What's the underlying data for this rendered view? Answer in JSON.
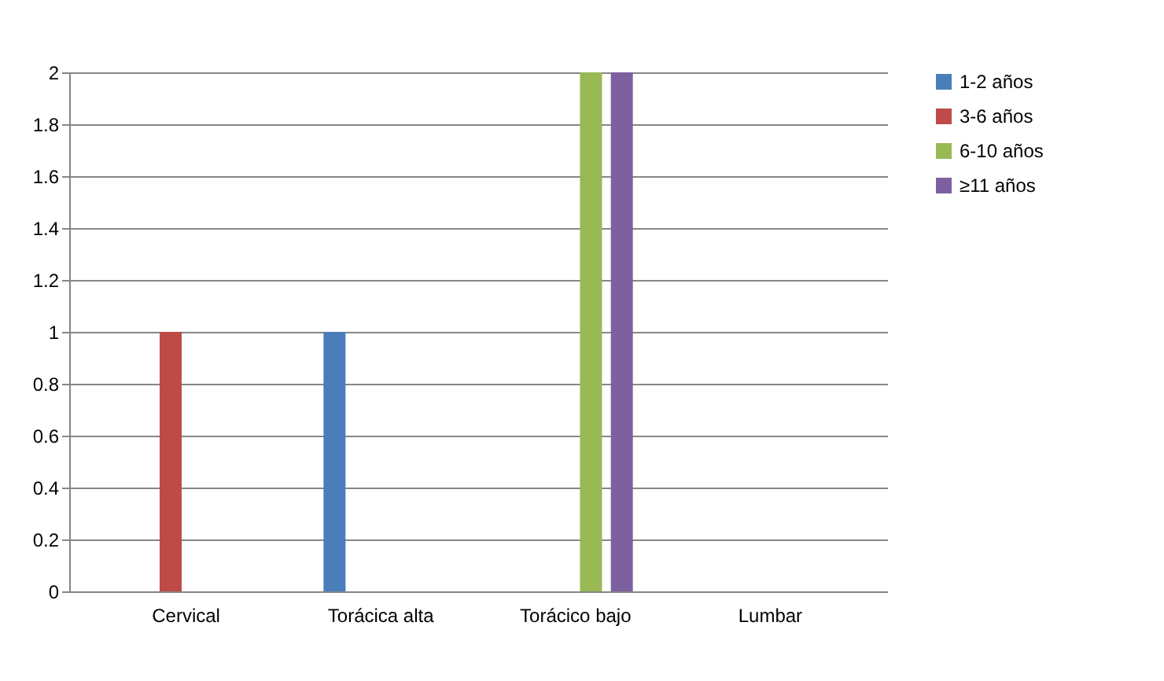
{
  "chart_data": {
    "type": "bar",
    "categories": [
      "Cervical",
      "Torácica alta",
      "Torácico bajo",
      "Lumbar"
    ],
    "series": [
      {
        "name": "1-2 años",
        "color": "#4a7ebb",
        "values": [
          0,
          1,
          0,
          0
        ]
      },
      {
        "name": "3-6 años",
        "color": "#be4b48",
        "values": [
          1,
          0,
          0,
          0
        ]
      },
      {
        "name": "6-10 años",
        "color": "#98b954",
        "values": [
          0,
          0,
          2,
          0
        ]
      },
      {
        "name": "≥11 años",
        "color": "#7d60a0",
        "values": [
          0,
          0,
          2,
          0
        ]
      }
    ],
    "ylim": [
      0,
      2
    ],
    "yticks": [
      0,
      0.2,
      0.4,
      0.6,
      0.8,
      1,
      1.2,
      1.4,
      1.6,
      1.8,
      2
    ],
    "grid": "y",
    "legend": "right"
  }
}
